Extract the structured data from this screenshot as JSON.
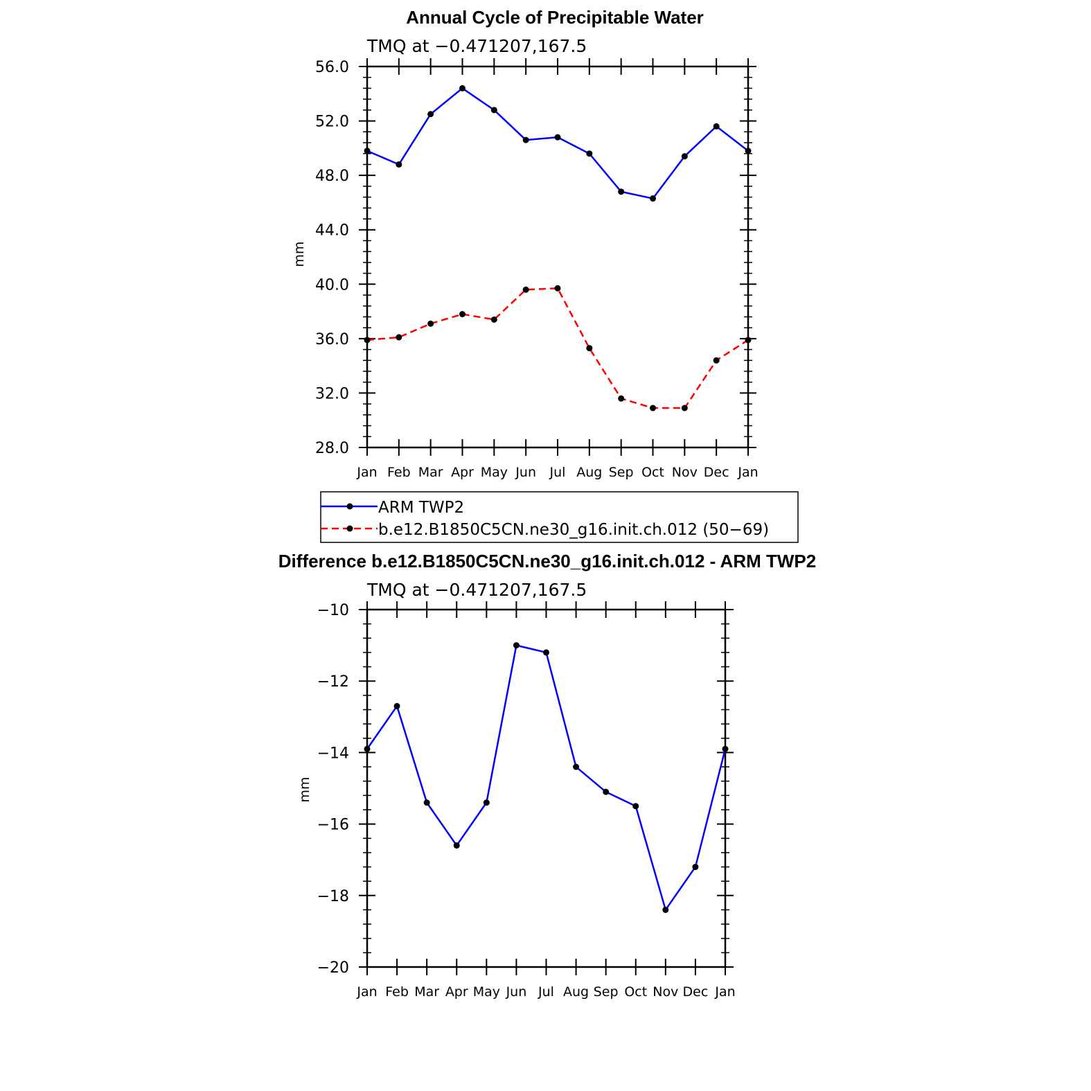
{
  "chart_data": [
    {
      "type": "line",
      "title": "Annual Cycle of Precipitable Water",
      "subtitle": "TMQ at −0.471207,167.5",
      "ylabel": "mm",
      "xlabel": "",
      "categories": [
        "Jan",
        "Feb",
        "Mar",
        "Apr",
        "May",
        "Jun",
        "Jul",
        "Aug",
        "Sep",
        "Oct",
        "Nov",
        "Dec",
        "Jan"
      ],
      "ylim": [
        28.0,
        56.0
      ],
      "yticks": [
        "28.0",
        "32.0",
        "36.0",
        "40.0",
        "44.0",
        "48.0",
        "52.0",
        "56.0"
      ],
      "series": [
        {
          "name": "ARM TWP2",
          "color": "#0000ff",
          "dash": "solid",
          "values": [
            49.8,
            48.8,
            52.5,
            54.4,
            52.8,
            50.6,
            50.8,
            49.6,
            46.8,
            46.3,
            49.4,
            51.6,
            49.8
          ]
        },
        {
          "name": "b.e12.B1850C5CN.ne30_g16.init.ch.012 (50−69)",
          "color": "#ff0000",
          "dash": "dashed",
          "values": [
            35.9,
            36.1,
            37.1,
            37.8,
            37.4,
            39.6,
            39.7,
            35.3,
            31.6,
            30.9,
            30.9,
            34.4,
            35.9
          ]
        }
      ],
      "legend": {
        "position": "below",
        "entries": [
          "ARM TWP2",
          "b.e12.B1850C5CN.ne30_g16.init.ch.012 (50−69)"
        ]
      }
    },
    {
      "type": "line",
      "title": "Difference b.e12.B1850C5CN.ne30_g16.init.ch.012 - ARM TWP2",
      "subtitle": "TMQ at −0.471207,167.5",
      "ylabel": "mm",
      "xlabel": "",
      "categories": [
        "Jan",
        "Feb",
        "Mar",
        "Apr",
        "May",
        "Jun",
        "Jul",
        "Aug",
        "Sep",
        "Oct",
        "Nov",
        "Dec",
        "Jan"
      ],
      "ylim": [
        -20,
        -10
      ],
      "yticks": [
        "−20",
        "−18",
        "−16",
        "−14",
        "−12",
        "−10"
      ],
      "series": [
        {
          "name": "Difference",
          "color": "#0000ff",
          "dash": "solid",
          "values": [
            -13.9,
            -12.7,
            -15.4,
            -16.6,
            -15.4,
            -11.0,
            -11.2,
            -14.4,
            -15.1,
            -15.5,
            -18.4,
            -17.2,
            -13.9
          ]
        }
      ]
    }
  ]
}
